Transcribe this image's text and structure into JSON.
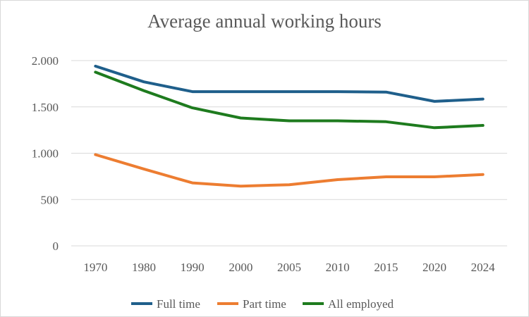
{
  "chart_data": {
    "type": "line",
    "title": "Average annual working hours",
    "xlabel": "",
    "ylabel": "",
    "categories": [
      "1970",
      "1980",
      "1990",
      "2000",
      "2005",
      "2010",
      "2015",
      "2020",
      "2024"
    ],
    "ylim": [
      0,
      2000
    ],
    "yticks": [
      0,
      500,
      1000,
      1500,
      2000
    ],
    "ytick_labels": [
      "0",
      "500",
      "1.000",
      "1.500",
      "2.000"
    ],
    "grid": true,
    "legend_position": "bottom",
    "series": [
      {
        "name": "Full time",
        "color": "#1f5f8b",
        "values": [
          1940,
          1770,
          1665,
          1665,
          1665,
          1665,
          1660,
          1560,
          1585
        ]
      },
      {
        "name": "Part time",
        "color": "#ed7d31",
        "values": [
          985,
          830,
          680,
          645,
          660,
          715,
          745,
          745,
          770
        ]
      },
      {
        "name": "All employed",
        "color": "#1e7b1e",
        "values": [
          1875,
          1675,
          1490,
          1380,
          1350,
          1350,
          1340,
          1275,
          1300
        ]
      }
    ]
  }
}
